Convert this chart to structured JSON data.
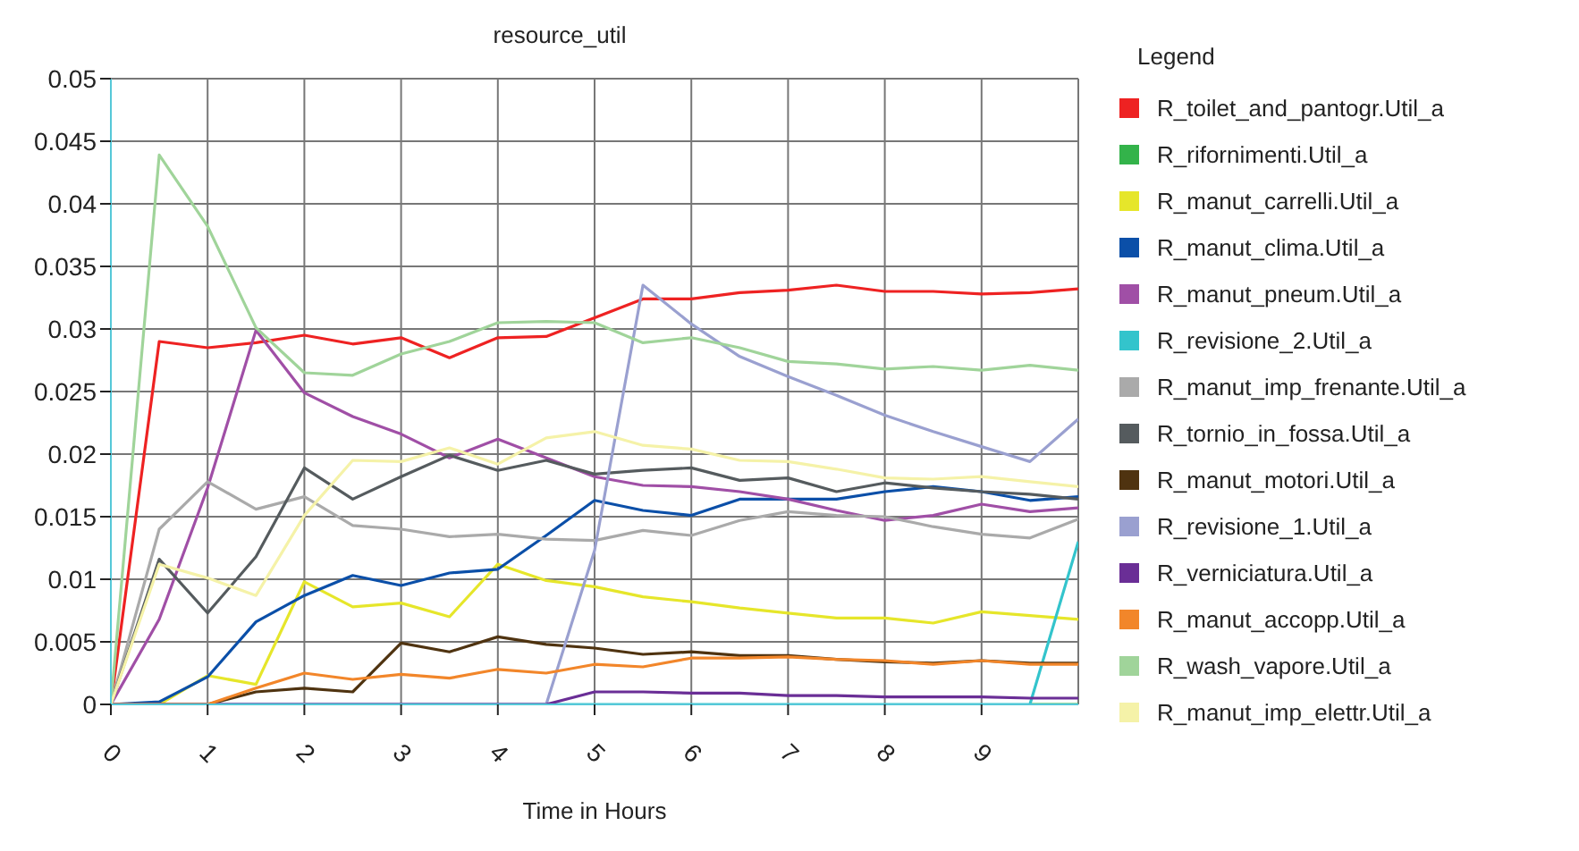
{
  "chart_data": {
    "type": "line",
    "title": "resource_util",
    "xlabel": "Time in Hours",
    "legend_title": "Legend",
    "legend": "right",
    "grid": true,
    "marker": "none",
    "line_style": "solid",
    "x": [
      0,
      0.5,
      1,
      1.5,
      2,
      2.5,
      3,
      3.5,
      4,
      4.5,
      5,
      5.5,
      6,
      6.5,
      7,
      7.5,
      8,
      8.5,
      9,
      9.5,
      10
    ],
    "xlim": [
      0,
      10
    ],
    "xticks": [
      0,
      1,
      2,
      3,
      4,
      5,
      6,
      7,
      8,
      9
    ],
    "ylim": [
      0,
      0.05
    ],
    "yticks": [
      0,
      0.005,
      0.01,
      0.015,
      0.02,
      0.025,
      0.03,
      0.035,
      0.04,
      0.045,
      0.05
    ],
    "series": [
      {
        "name": "R_toilet_and_pantogr.Util_a",
        "color": "#ee2222",
        "values": [
          0,
          0.029,
          0.0285,
          0.0289,
          0.0295,
          0.0288,
          0.0293,
          0.0277,
          0.0293,
          0.0294,
          0.0309,
          0.0324,
          0.0324,
          0.0329,
          0.0331,
          0.0335,
          0.033,
          0.033,
          0.0328,
          0.0329,
          0.0332
        ]
      },
      {
        "name": "R_rifornimenti.Util_a",
        "color": "#33b34a",
        "values": [
          null,
          null,
          null,
          null,
          null,
          null,
          null,
          null,
          null,
          null,
          null,
          null,
          null,
          null,
          null,
          null,
          null,
          null,
          null,
          0,
          0
        ]
      },
      {
        "name": "R_manut_carrelli.Util_a",
        "color": "#e6e62a",
        "values": [
          0,
          0,
          0.0023,
          0.0016,
          0.0098,
          0.0078,
          0.0081,
          0.007,
          0.0112,
          0.0099,
          0.0094,
          0.0086,
          0.0082,
          0.0077,
          0.0073,
          0.0069,
          0.0069,
          0.0065,
          0.0074,
          0.0071,
          0.0068
        ]
      },
      {
        "name": "R_manut_clima.Util_a",
        "color": "#0b4fa8",
        "values": [
          0,
          0.0002,
          0.0022,
          0.0066,
          0.0087,
          0.0103,
          0.0095,
          0.0105,
          0.0108,
          0.0135,
          0.0163,
          0.0155,
          0.0151,
          0.0164,
          0.0164,
          0.0164,
          0.017,
          0.0174,
          0.017,
          0.0163,
          0.0166
        ]
      },
      {
        "name": "R_manut_pneum.Util_a",
        "color": "#a04fa6",
        "values": [
          0,
          0.0068,
          0.0173,
          0.0299,
          0.0249,
          0.023,
          0.0216,
          0.0197,
          0.0212,
          0.0197,
          0.0182,
          0.0175,
          0.0174,
          0.017,
          0.0164,
          0.0155,
          0.0147,
          0.0151,
          0.016,
          0.0154,
          0.0157
        ]
      },
      {
        "name": "R_revisione_2.Util_a",
        "color": "#33c4cc",
        "values": [
          0,
          0,
          0,
          0,
          0,
          0,
          0,
          0,
          0,
          0,
          0,
          0,
          0,
          0,
          0,
          0,
          0,
          0,
          0,
          0,
          0.013
        ]
      },
      {
        "name": "R_manut_imp_frenante.Util_a",
        "color": "#aaaaaa",
        "values": [
          0,
          0.014,
          0.0178,
          0.0156,
          0.0166,
          0.0143,
          0.014,
          0.0134,
          0.0136,
          0.0132,
          0.0131,
          0.0139,
          0.0135,
          0.0147,
          0.0154,
          0.0151,
          0.015,
          0.0142,
          0.0136,
          0.0133,
          0.0148
        ]
      },
      {
        "name": "R_tornio_in_fossa.Util_a",
        "color": "#555b5e",
        "values": [
          0,
          0.0116,
          0.0073,
          0.0118,
          0.0189,
          0.0164,
          0.0182,
          0.0199,
          0.0187,
          0.0195,
          0.0184,
          0.0187,
          0.0189,
          0.0179,
          0.0181,
          0.017,
          0.0177,
          0.0173,
          0.017,
          0.0168,
          0.0164
        ]
      },
      {
        "name": "R_manut_motori.Util_a",
        "color": "#4f3310",
        "values": [
          0,
          0,
          0,
          0.001,
          0.0013,
          0.001,
          0.0049,
          0.0042,
          0.0054,
          0.0048,
          0.0045,
          0.004,
          0.0042,
          0.0039,
          0.0039,
          0.0036,
          0.0034,
          0.0033,
          0.0035,
          0.0033,
          0.0033
        ]
      },
      {
        "name": "R_revisione_1.Util_a",
        "color": "#9aa0d0",
        "values": [
          0,
          0,
          0,
          0,
          0,
          0,
          0,
          0,
          0,
          0,
          0.0123,
          0.0335,
          0.0304,
          0.0278,
          0.0262,
          0.0247,
          0.0231,
          0.0218,
          0.0206,
          0.0194,
          0.0228
        ]
      },
      {
        "name": "R_verniciatura.Util_a",
        "color": "#6a2e96",
        "values": [
          0,
          0,
          0,
          0,
          0,
          0,
          0,
          0,
          0,
          0,
          0.001,
          0.001,
          0.0009,
          0.0009,
          0.0007,
          0.0007,
          0.0006,
          0.0006,
          0.0006,
          0.0005,
          0.0005
        ]
      },
      {
        "name": "R_manut_accopp.Util_a",
        "color": "#f2862a",
        "values": [
          0,
          0,
          0,
          0.0013,
          0.0025,
          0.002,
          0.0024,
          0.0021,
          0.0028,
          0.0025,
          0.0032,
          0.003,
          0.0037,
          0.0037,
          0.0038,
          0.0036,
          0.0035,
          0.0032,
          0.0035,
          0.0032,
          0.0032
        ]
      },
      {
        "name": "R_wash_vapore.Util_a",
        "color": "#a0d49a",
        "values": [
          0,
          0.0439,
          0.0382,
          0.0301,
          0.0265,
          0.0263,
          0.028,
          0.029,
          0.0305,
          0.0306,
          0.0305,
          0.0289,
          0.0293,
          0.0285,
          0.0274,
          0.0272,
          0.0268,
          0.027,
          0.0267,
          0.0271,
          0.0267
        ]
      },
      {
        "name": "R_manut_imp_elettr.Util_a",
        "color": "#f5f2a8",
        "values": [
          0,
          0.0112,
          0.0101,
          0.0087,
          0.0151,
          0.0195,
          0.0194,
          0.0205,
          0.0192,
          0.0213,
          0.0218,
          0.0207,
          0.0204,
          0.0195,
          0.0194,
          0.0188,
          0.0181,
          0.018,
          0.0182,
          0.0178,
          0.0174
        ]
      }
    ]
  }
}
